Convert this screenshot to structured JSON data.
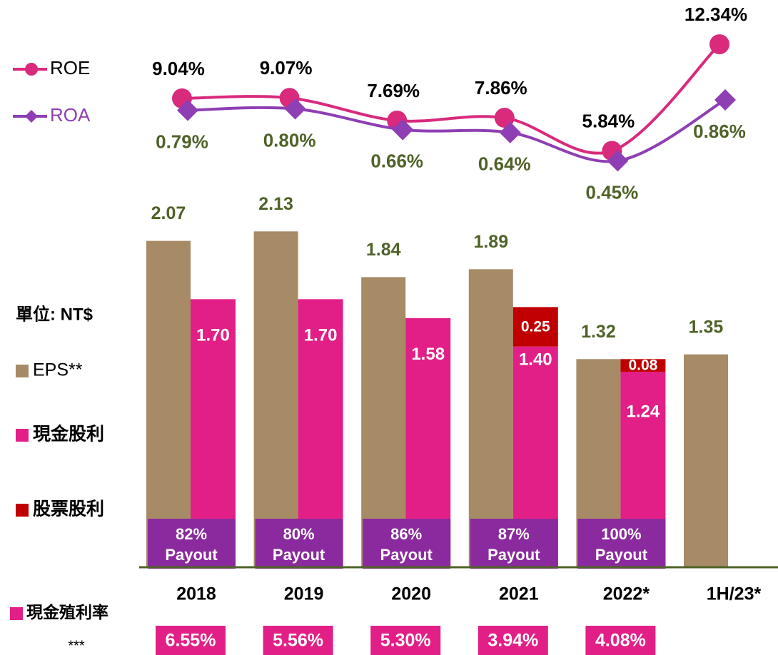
{
  "chart_data": {
    "type": "bar",
    "categories": [
      "2018",
      "2019",
      "2020",
      "2021",
      "2022*",
      "1H/23*"
    ],
    "unit_label": "單位: NT$",
    "ylim": [
      0,
      2.24
    ],
    "series": [
      {
        "name": "EPS**",
        "color": "#a68b66",
        "values": [
          2.07,
          2.13,
          1.84,
          1.89,
          1.32,
          1.35
        ]
      },
      {
        "name": "現金股利",
        "color": "#e21f86",
        "values": [
          1.7,
          1.7,
          1.58,
          1.4,
          1.24,
          null
        ],
        "value_labels": [
          "1.70",
          "1.70",
          "1.58",
          "1.40",
          "1.24",
          null
        ]
      },
      {
        "name": "股票股利",
        "color": "#c00000",
        "values": [
          null,
          null,
          null,
          0.25,
          0.08,
          null
        ],
        "stacked_on": "現金股利"
      }
    ],
    "payout": {
      "name": "Payout",
      "color": "#8b2a9e",
      "values": [
        82,
        80,
        86,
        87,
        100,
        null
      ],
      "value_labels": [
        "82%",
        "80%",
        "86%",
        "87%",
        "100%",
        null
      ]
    },
    "dividend_yield": {
      "name": "現金殖利率",
      "footnote": "***",
      "color": "#e21f86",
      "values": [
        6.55,
        5.56,
        5.3,
        3.94,
        4.08,
        null
      ],
      "value_labels": [
        "6.55%",
        "5.56%",
        "5.30%",
        "3.94%",
        "4.08%",
        null
      ]
    },
    "lines": [
      {
        "name": "ROE",
        "type": "line",
        "color": "#d92a7c",
        "marker": "circle",
        "label_color": "#000000",
        "ylim": [
          4.6,
          13.3
        ],
        "values": [
          9.04,
          9.07,
          7.69,
          7.86,
          5.84,
          12.34
        ],
        "value_labels": [
          "9.04%",
          "9.07%",
          "7.69%",
          "7.86%",
          "5.84%",
          "12.34%"
        ]
      },
      {
        "name": "ROA",
        "type": "line",
        "color": "#8e3fb3",
        "marker": "diamond",
        "label_color": "#4f6228",
        "ylim": [
          0.38,
          1.34
        ],
        "values": [
          0.79,
          0.8,
          0.66,
          0.64,
          0.45,
          0.86
        ],
        "value_labels": [
          "0.79%",
          "0.80%",
          "0.66%",
          "0.64%",
          "0.45%",
          "0.86%"
        ]
      }
    ]
  }
}
